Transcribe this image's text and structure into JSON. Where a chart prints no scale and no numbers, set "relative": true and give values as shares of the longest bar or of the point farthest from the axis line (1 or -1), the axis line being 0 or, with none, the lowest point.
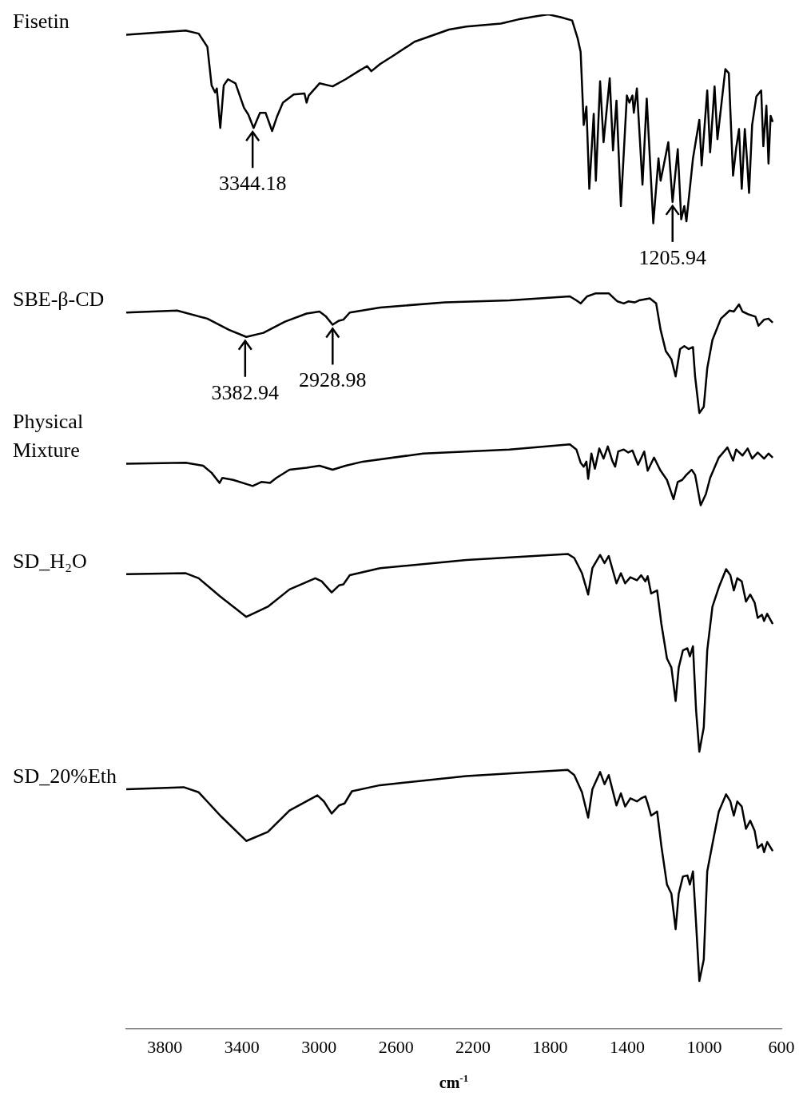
{
  "chart_data": {
    "type": "line",
    "relative": true,
    "xlabel": "cm$^{-1}$",
    "xlim": [
      4000,
      600
    ],
    "xticks": [
      3800,
      3400,
      3000,
      2600,
      2200,
      1800,
      1400,
      1000,
      600
    ],
    "grid": false,
    "legend": false,
    "annotations": [
      {
        "text": "3344.18",
        "x": 3344.18,
        "y": 0.888
      },
      {
        "text": "1205.94",
        "x": 1165,
        "y": 0.815
      },
      {
        "text": "3382.94",
        "x": 3382.94,
        "y": 0.682
      },
      {
        "text": "2928.98",
        "x": 2928.98,
        "y": 0.694
      }
    ],
    "series": [
      {
        "name": "Fisetin",
        "color": "#000000",
        "x": [
          4000,
          3691,
          3624,
          3579,
          3557,
          3539,
          3530,
          3512,
          3494,
          3472,
          3433,
          3389,
          3366,
          3339,
          3306,
          3277,
          3243,
          3216,
          3187,
          3131,
          3075,
          3064,
          3053,
          2997,
          2929,
          2862,
          2795,
          2750,
          2728,
          2683,
          2616,
          2504,
          2325,
          2235,
          2056,
          1966,
          1877,
          1810,
          1742,
          1686,
          1657,
          1642,
          1626,
          1612,
          1597,
          1574,
          1563,
          1541,
          1523,
          1491,
          1474,
          1456,
          1433,
          1402,
          1389,
          1373,
          1366,
          1350,
          1321,
          1299,
          1265,
          1238,
          1227,
          1209,
          1187,
          1165,
          1138,
          1120,
          1104,
          1093,
          1059,
          1026,
          1014,
          985,
          970,
          947,
          932,
          891,
          873,
          851,
          835,
          820,
          806,
          790,
          779,
          768,
          752,
          730,
          705,
          694,
          678,
          667,
          656,
          645
        ],
        "values": [
          0.98,
          0.984,
          0.981,
          0.968,
          0.93,
          0.923,
          0.927,
          0.888,
          0.93,
          0.936,
          0.932,
          0.908,
          0.901,
          0.888,
          0.903,
          0.903,
          0.885,
          0.9,
          0.913,
          0.921,
          0.922,
          0.913,
          0.92,
          0.932,
          0.929,
          0.936,
          0.944,
          0.949,
          0.944,
          0.951,
          0.959,
          0.973,
          0.985,
          0.988,
          0.991,
          0.995,
          0.998,
          1.0,
          0.997,
          0.994,
          0.976,
          0.963,
          0.891,
          0.909,
          0.828,
          0.902,
          0.836,
          0.934,
          0.874,
          0.937,
          0.866,
          0.915,
          0.811,
          0.92,
          0.913,
          0.92,
          0.903,
          0.927,
          0.832,
          0.917,
          0.794,
          0.858,
          0.836,
          0.853,
          0.874,
          0.815,
          0.867,
          0.798,
          0.811,
          0.796,
          0.858,
          0.896,
          0.851,
          0.925,
          0.864,
          0.929,
          0.877,
          0.946,
          0.942,
          0.841,
          0.868,
          0.887,
          0.828,
          0.887,
          0.858,
          0.824,
          0.891,
          0.919,
          0.925,
          0.87,
          0.91,
          0.853,
          0.9,
          0.894
        ]
      },
      {
        "name": "SBE-β-CD",
        "color": "#000000",
        "x": [
          4000,
          3736,
          3579,
          3467,
          3377,
          3288,
          3176,
          3064,
          2997,
          2963,
          2929,
          2896,
          2873,
          2840,
          2683,
          2347,
          2011,
          1698,
          1664,
          1642,
          1608,
          1563,
          1496,
          1451,
          1418,
          1395,
          1362,
          1339,
          1283,
          1250,
          1227,
          1200,
          1171,
          1149,
          1126,
          1104,
          1081,
          1059,
          1048,
          1026,
          1003,
          985,
          958,
          914,
          869,
          847,
          820,
          802,
          768,
          735,
          719,
          690,
          667,
          645
        ],
        "values": [
          0.706,
          0.708,
          0.7,
          0.689,
          0.682,
          0.686,
          0.697,
          0.705,
          0.707,
          0.702,
          0.694,
          0.698,
          0.699,
          0.706,
          0.711,
          0.716,
          0.718,
          0.722,
          0.718,
          0.715,
          0.722,
          0.725,
          0.725,
          0.717,
          0.715,
          0.717,
          0.716,
          0.718,
          0.72,
          0.715,
          0.689,
          0.668,
          0.66,
          0.643,
          0.67,
          0.673,
          0.67,
          0.672,
          0.643,
          0.607,
          0.613,
          0.651,
          0.679,
          0.7,
          0.708,
          0.707,
          0.714,
          0.707,
          0.704,
          0.702,
          0.693,
          0.699,
          0.7,
          0.696
        ]
      },
      {
        "name": "Physical Mixture",
        "color": "#000000",
        "x": [
          4000,
          3691,
          3601,
          3557,
          3516,
          3501,
          3445,
          3377,
          3344,
          3299,
          3254,
          3221,
          3153,
          3064,
          2997,
          2929,
          2862,
          2773,
          2459,
          2011,
          1698,
          1664,
          1642,
          1626,
          1612,
          1603,
          1586,
          1568,
          1545,
          1523,
          1501,
          1478,
          1463,
          1447,
          1418,
          1395,
          1373,
          1344,
          1312,
          1294,
          1261,
          1227,
          1194,
          1160,
          1138,
          1115,
          1093,
          1066,
          1048,
          1019,
          992,
          970,
          925,
          880,
          851,
          835,
          802,
          775,
          752,
          723,
          690,
          667,
          645
        ],
        "values": [
          0.557,
          0.558,
          0.555,
          0.548,
          0.538,
          0.543,
          0.541,
          0.537,
          0.535,
          0.539,
          0.538,
          0.543,
          0.551,
          0.553,
          0.555,
          0.551,
          0.555,
          0.559,
          0.567,
          0.571,
          0.576,
          0.571,
          0.558,
          0.554,
          0.559,
          0.542,
          0.567,
          0.552,
          0.572,
          0.562,
          0.574,
          0.56,
          0.554,
          0.569,
          0.571,
          0.568,
          0.57,
          0.556,
          0.569,
          0.55,
          0.563,
          0.55,
          0.541,
          0.522,
          0.539,
          0.541,
          0.546,
          0.551,
          0.546,
          0.516,
          0.527,
          0.543,
          0.563,
          0.573,
          0.56,
          0.571,
          0.565,
          0.572,
          0.562,
          0.568,
          0.562,
          0.567,
          0.563
        ]
      },
      {
        "name": "SD_H₂O",
        "color": "#000000",
        "x": [
          4000,
          3691,
          3624,
          3512,
          3377,
          3265,
          3153,
          3019,
          2986,
          2934,
          2896,
          2873,
          2840,
          2683,
          2235,
          1709,
          1675,
          1635,
          1603,
          1581,
          1541,
          1518,
          1496,
          1456,
          1433,
          1411,
          1384,
          1350,
          1328,
          1306,
          1294,
          1276,
          1245,
          1223,
          1194,
          1171,
          1149,
          1133,
          1111,
          1088,
          1075,
          1059,
          1043,
          1026,
          1003,
          985,
          958,
          925,
          887,
          865,
          847,
          829,
          806,
          784,
          762,
          739,
          723,
          701,
          690,
          674,
          645
        ],
        "values": [
          0.448,
          0.449,
          0.444,
          0.426,
          0.406,
          0.416,
          0.433,
          0.444,
          0.441,
          0.43,
          0.437,
          0.438,
          0.447,
          0.454,
          0.462,
          0.468,
          0.464,
          0.449,
          0.428,
          0.454,
          0.467,
          0.459,
          0.466,
          0.439,
          0.449,
          0.439,
          0.445,
          0.442,
          0.447,
          0.441,
          0.446,
          0.429,
          0.432,
          0.399,
          0.365,
          0.356,
          0.323,
          0.356,
          0.373,
          0.375,
          0.367,
          0.377,
          0.314,
          0.273,
          0.297,
          0.373,
          0.416,
          0.435,
          0.453,
          0.447,
          0.432,
          0.444,
          0.441,
          0.421,
          0.428,
          0.42,
          0.405,
          0.408,
          0.402,
          0.409,
          0.399
        ]
      },
      {
        "name": "SD_20%Eth",
        "color": "#000000",
        "x": [
          4000,
          3702,
          3624,
          3512,
          3377,
          3265,
          3153,
          3008,
          2974,
          2934,
          2896,
          2867,
          2829,
          2683,
          2235,
          1709,
          1675,
          1635,
          1603,
          1581,
          1541,
          1518,
          1496,
          1456,
          1433,
          1411,
          1384,
          1350,
          1328,
          1306,
          1294,
          1276,
          1245,
          1223,
          1194,
          1171,
          1149,
          1133,
          1111,
          1088,
          1075,
          1059,
          1043,
          1026,
          1003,
          985,
          954,
          925,
          887,
          865,
          847,
          829,
          806,
          784,
          762,
          739,
          723,
          701,
          690,
          674,
          645
        ],
        "values": [
          0.236,
          0.238,
          0.233,
          0.21,
          0.185,
          0.194,
          0.215,
          0.23,
          0.224,
          0.212,
          0.22,
          0.222,
          0.234,
          0.24,
          0.249,
          0.255,
          0.25,
          0.233,
          0.208,
          0.236,
          0.253,
          0.241,
          0.25,
          0.22,
          0.232,
          0.219,
          0.227,
          0.224,
          0.227,
          0.229,
          0.222,
          0.21,
          0.214,
          0.18,
          0.142,
          0.133,
          0.098,
          0.133,
          0.15,
          0.151,
          0.142,
          0.155,
          0.104,
          0.047,
          0.068,
          0.155,
          0.186,
          0.214,
          0.231,
          0.224,
          0.21,
          0.224,
          0.219,
          0.197,
          0.205,
          0.195,
          0.178,
          0.182,
          0.174,
          0.184,
          0.175
        ]
      }
    ]
  }
}
